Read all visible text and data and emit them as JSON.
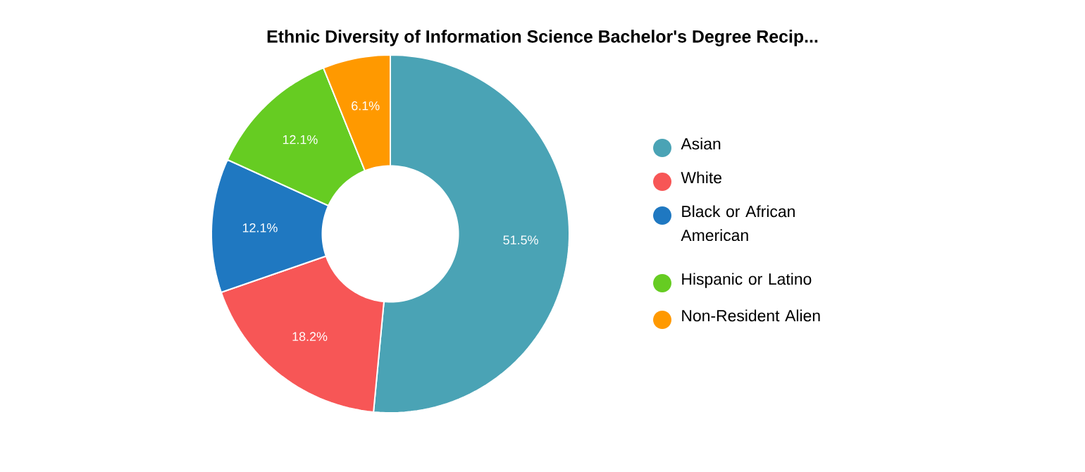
{
  "chart_data": {
    "type": "donut",
    "title": "Ethnic Diversity of Information Science Bachelor's Degree Recip...",
    "categories": [
      "Asian",
      "White",
      "Black or African American",
      "Hispanic or Latino",
      "Non-Resident Alien"
    ],
    "values": [
      51.5,
      18.2,
      12.1,
      12.1,
      6.1
    ],
    "colors": [
      "#4aa3b5",
      "#f75656",
      "#1f78c1",
      "#66cc22",
      "#ff9900"
    ],
    "value_labels": [
      "51.5%",
      "18.2%",
      "12.1%",
      "12.1%",
      "6.1%"
    ],
    "legend": "right"
  }
}
